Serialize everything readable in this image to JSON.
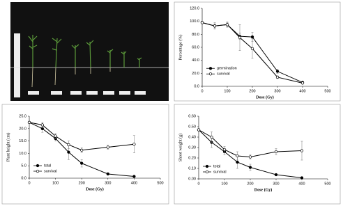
{
  "chart_data": [
    {
      "type": "line",
      "ylabel": "Percentage (%)",
      "xlabel": "Dose (Gy)",
      "x": [
        0,
        50,
        100,
        150,
        200,
        300,
        400
      ],
      "series": [
        {
          "name": "germination",
          "color": "#000000",
          "marker": "filled",
          "values": [
            98,
            93,
            95,
            77,
            76,
            23,
            6
          ],
          "errors": [
            0,
            3,
            3,
            5,
            7,
            3,
            1
          ]
        },
        {
          "name": "survival",
          "color": "#000000",
          "marker": "open",
          "values": [
            98,
            93,
            95,
            75,
            58,
            14,
            5
          ],
          "errors": [
            0,
            5,
            4,
            20,
            15,
            2,
            1
          ]
        }
      ],
      "xlim": [
        0,
        500
      ],
      "xticks": [
        0,
        100,
        200,
        300,
        400,
        500
      ],
      "ylim": [
        0,
        120
      ],
      "yticks": [
        {
          "value": 0,
          "label": "0.0"
        },
        {
          "value": 20,
          "label": "20.0"
        },
        {
          "value": 40,
          "label": "40.0"
        },
        {
          "value": 60,
          "label": "60.0"
        },
        {
          "value": 80,
          "label": "80.0"
        },
        {
          "value": 100,
          "label": "100.0"
        },
        {
          "value": 120,
          "label": "120.0"
        }
      ],
      "grid": false,
      "legend": "center-left"
    },
    {
      "type": "line",
      "ylabel": "Plant height (cm)",
      "xlabel": "Dose (Gy)",
      "x": [
        0,
        50,
        100,
        150,
        200,
        300,
        400
      ],
      "series": [
        {
          "name": "total",
          "color": "#000000",
          "marker": "filled",
          "values": [
            22.5,
            20,
            16,
            10.5,
            6,
            1.7,
            0.7
          ],
          "errors": [
            0,
            1.5,
            1,
            3,
            1.5,
            0,
            0
          ]
        },
        {
          "name": "survival",
          "color": "#000000",
          "marker": "open",
          "values": [
            22.5,
            21.5,
            17,
            13.5,
            11.3,
            12.5,
            13.7
          ],
          "errors": [
            0,
            1,
            1,
            1.5,
            1,
            0.8,
            3.5
          ]
        }
      ],
      "xlim": [
        0,
        500
      ],
      "xticks": [
        0,
        100,
        200,
        300,
        400,
        500
      ],
      "ylim": [
        0,
        25
      ],
      "yticks": [
        {
          "value": 0,
          "label": "0.0"
        },
        {
          "value": 5,
          "label": "5.0"
        },
        {
          "value": 10,
          "label": "10.0"
        },
        {
          "value": 15,
          "label": "15.0"
        },
        {
          "value": 20,
          "label": "20.0"
        },
        {
          "value": 25,
          "label": "25.0"
        }
      ],
      "grid": false,
      "legend": "lower-left"
    },
    {
      "type": "line",
      "ylabel": "Shoot weight (g)",
      "xlabel": "Dose (Gy)",
      "x": [
        0,
        50,
        100,
        150,
        200,
        300,
        400
      ],
      "series": [
        {
          "name": "total",
          "color": "#000000",
          "marker": "filled",
          "values": [
            0.47,
            0.35,
            0.26,
            0.16,
            0.11,
            0.04,
            0.01
          ],
          "errors": [
            0,
            0.05,
            0.03,
            0.06,
            0.03,
            0,
            0
          ]
        },
        {
          "name": "survival",
          "color": "#000000",
          "marker": "open",
          "values": [
            0.47,
            0.4,
            0.28,
            0.22,
            0.21,
            0.26,
            0.27
          ],
          "errors": [
            0,
            0.05,
            0.03,
            0.04,
            0.02,
            0.03,
            0.09
          ]
        }
      ],
      "xlim": [
        0,
        500
      ],
      "xticks": [
        0,
        100,
        200,
        300,
        400,
        500
      ],
      "ylim": [
        0,
        0.6
      ],
      "yticks": [
        {
          "value": 0,
          "label": "0.00"
        },
        {
          "value": 0.1,
          "label": "0.10"
        },
        {
          "value": 0.2,
          "label": "0.20"
        },
        {
          "value": 0.3,
          "label": "0.30"
        },
        {
          "value": 0.4,
          "label": "0.40"
        },
        {
          "value": 0.5,
          "label": "0.50"
        },
        {
          "value": 0.6,
          "label": "0.60"
        }
      ],
      "grid": false,
      "legend": "lower-left"
    }
  ]
}
